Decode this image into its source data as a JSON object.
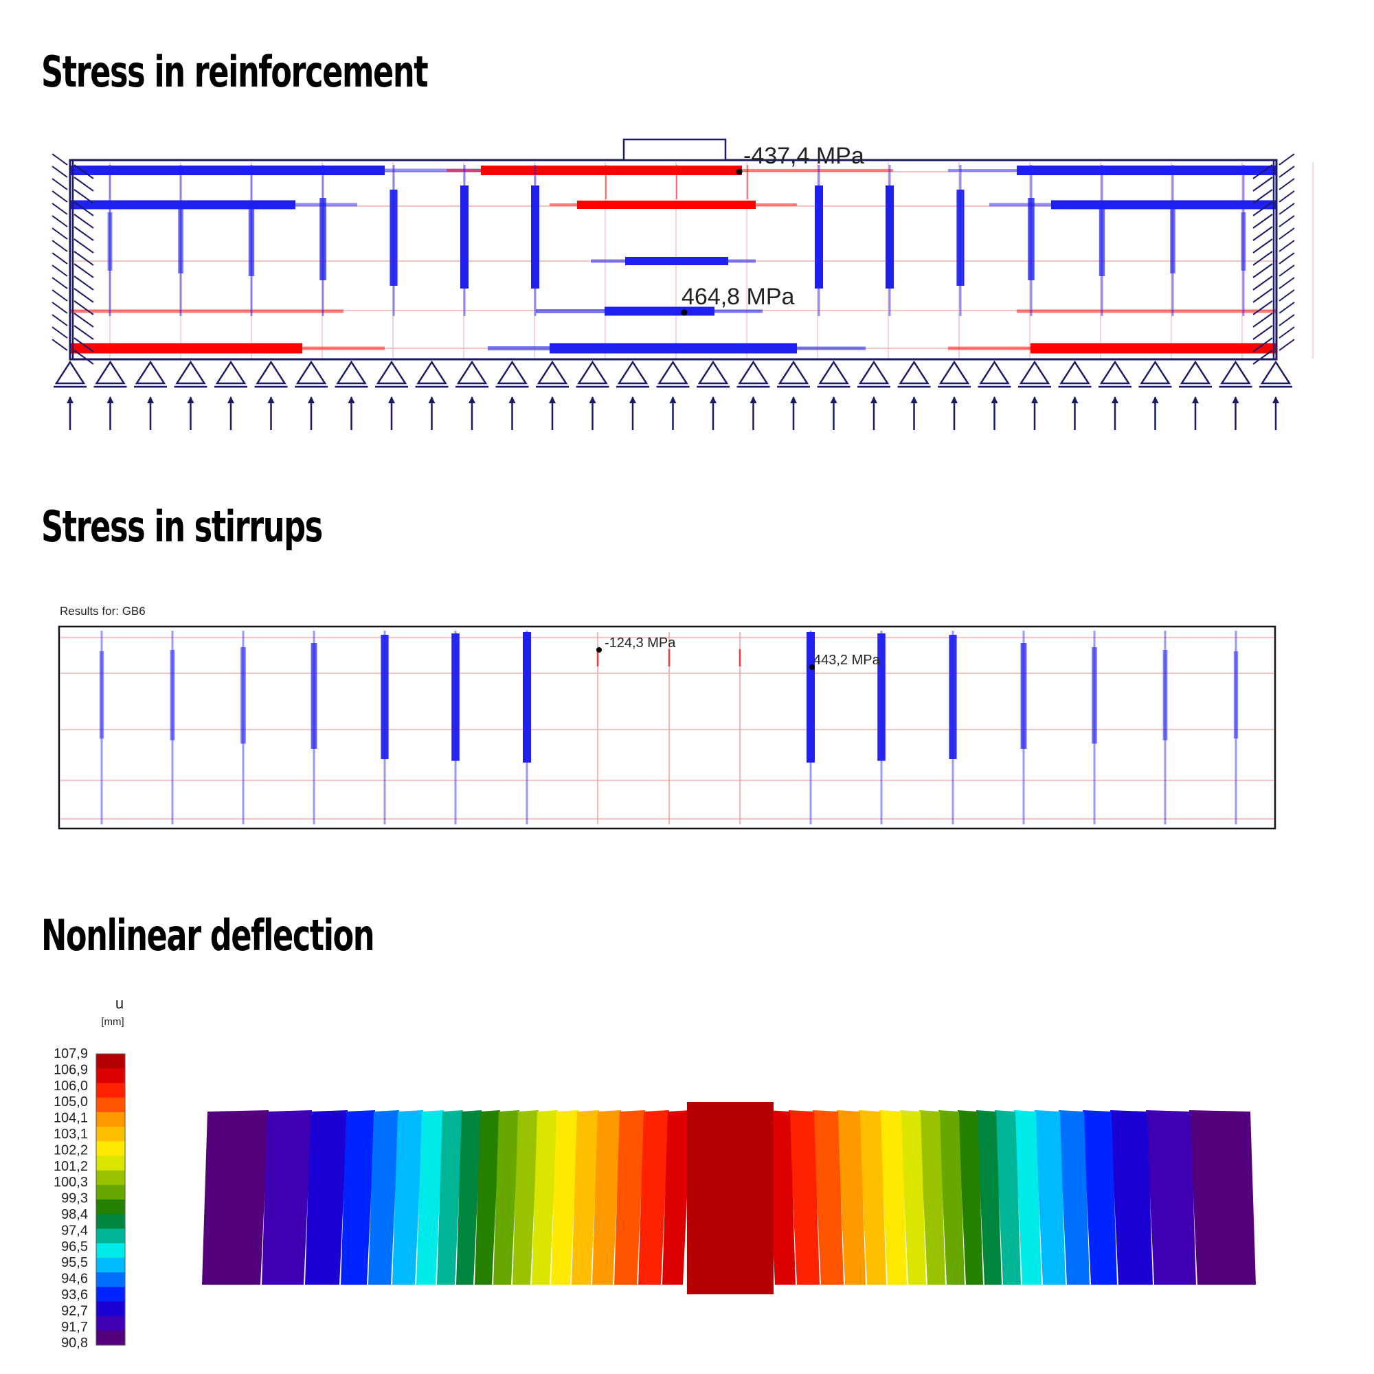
{
  "sections": {
    "reinforcement": {
      "title": "Stress in reinforcement",
      "label_top": "-437,4 MPa",
      "label_bottom": "464,8 MPa"
    },
    "stirrups": {
      "title": "Stress in stirrups",
      "results_for": "Results for: GB6",
      "label_left": "-124,3 MPa",
      "label_right": "443,2 MPa"
    },
    "deflection": {
      "title": "Nonlinear deflection",
      "legend_var": "u",
      "legend_unit": "[mm]",
      "legend_values": [
        "107,9",
        "106,9",
        "106,0",
        "105,0",
        "104,1",
        "103,1",
        "102,2",
        "101,2",
        "100,3",
        "99,3",
        "98,4",
        "97,4",
        "96,5",
        "95,5",
        "94,6",
        "93,6",
        "92,7",
        "91,7",
        "90,8"
      ],
      "legend_colors": [
        "#b40000",
        "#dd0000",
        "#ff2200",
        "#ff5500",
        "#ff9900",
        "#ffbf00",
        "#ffe900",
        "#dbe600",
        "#99c200",
        "#66a800",
        "#258000",
        "#00853d",
        "#00b596",
        "#00eaea",
        "#00b9ff",
        "#0071ff",
        "#0024ff",
        "#1a00d2",
        "#3e00b0",
        "#52007b"
      ]
    }
  },
  "colors": {
    "tension": "#ff0000",
    "compression": "#1f1ff0",
    "frame": "#1a1a66"
  }
}
